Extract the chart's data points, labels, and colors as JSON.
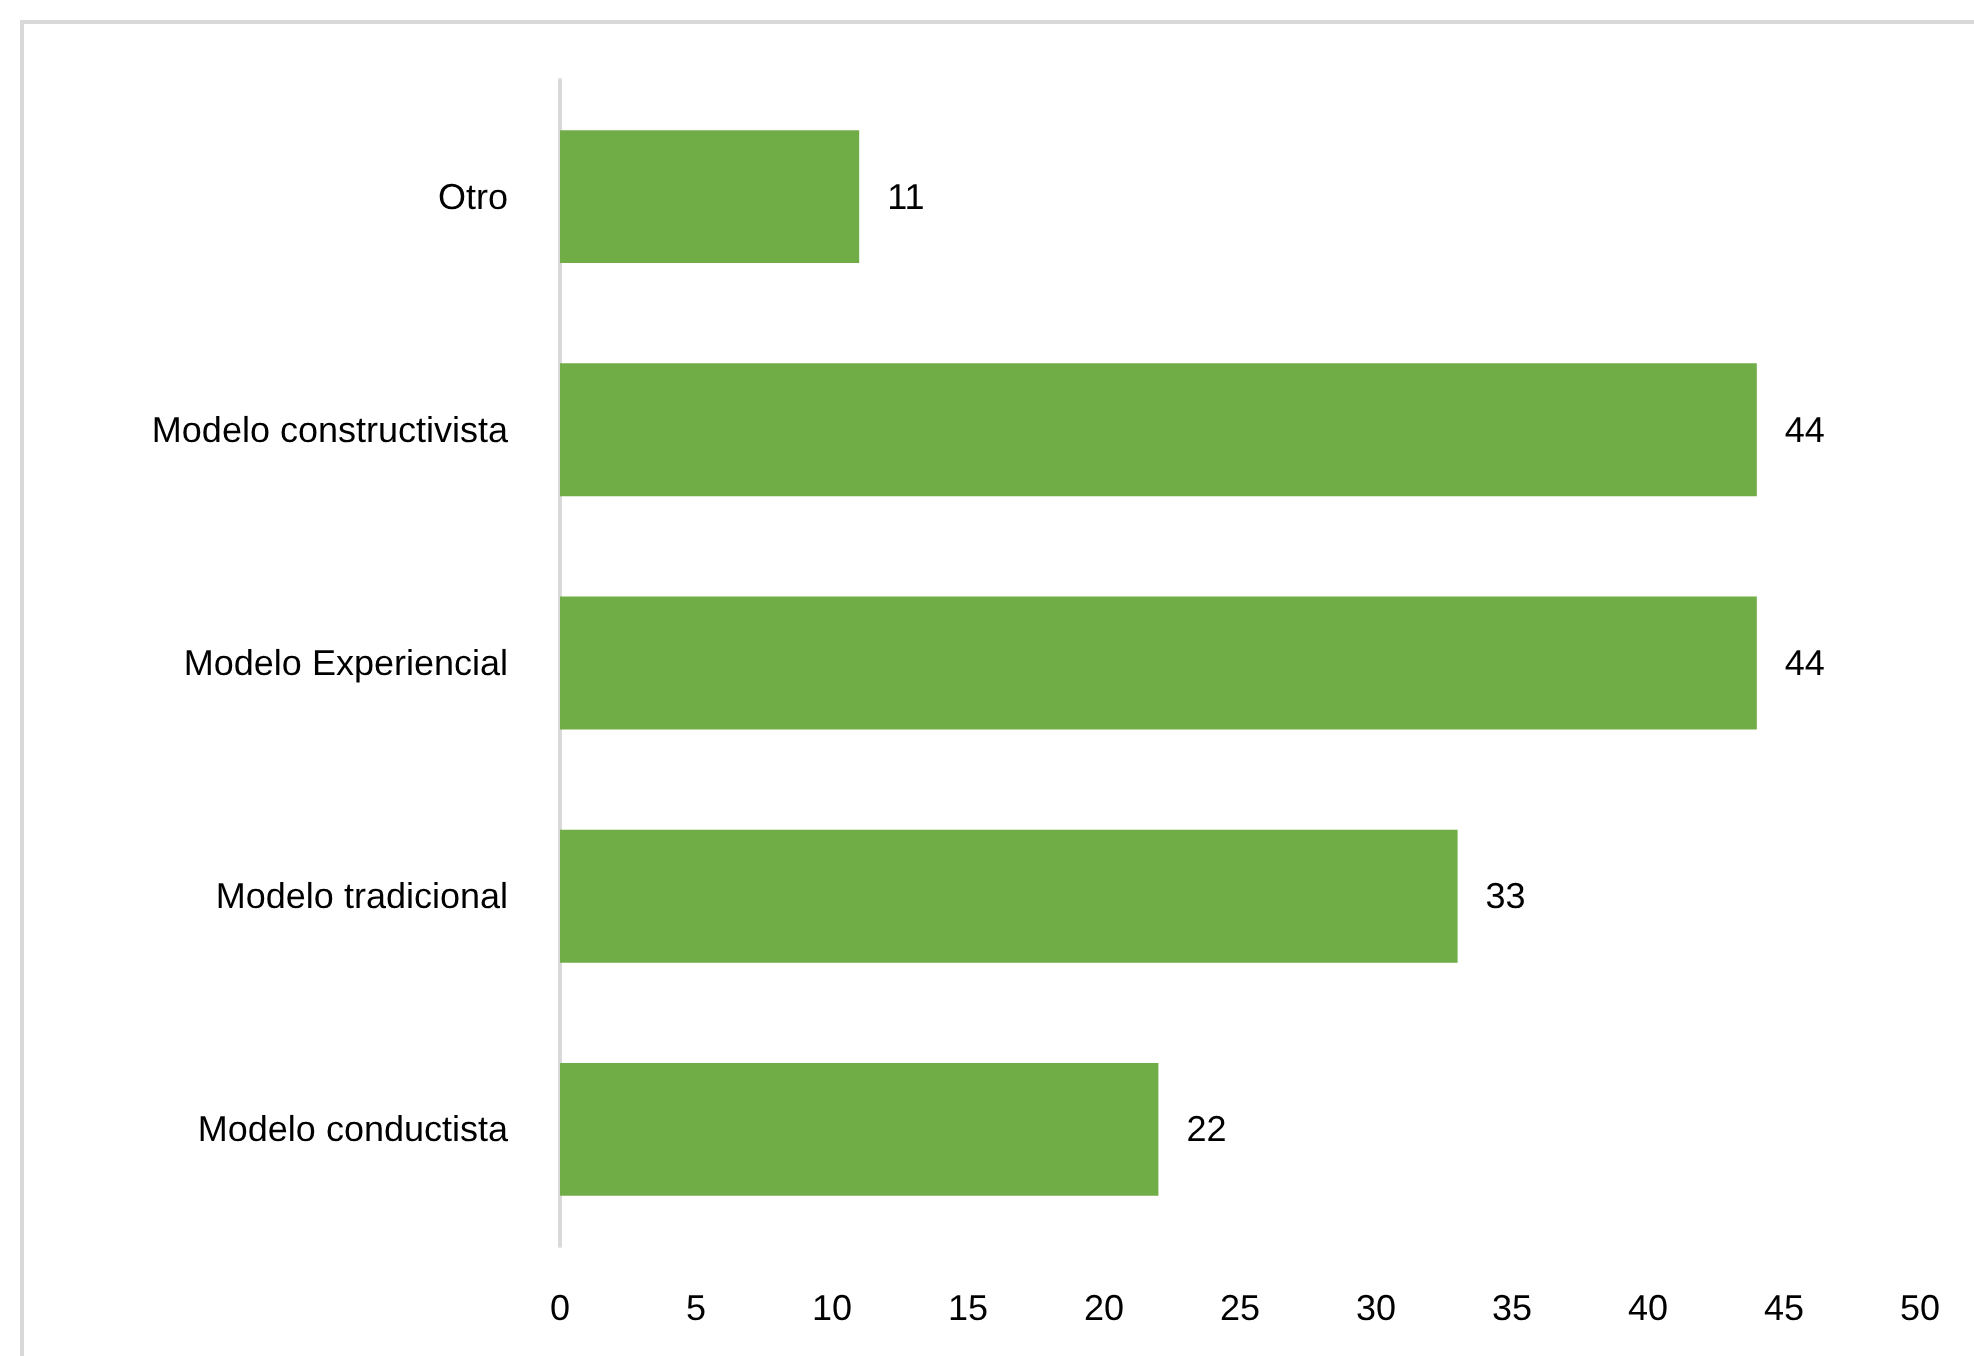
{
  "chart_data": {
    "type": "bar",
    "orientation": "horizontal",
    "categories": [
      "Otro",
      "Modelo constructivista",
      "Modelo Experiencial",
      "Modelo tradicional",
      "Modelo conductista"
    ],
    "values": [
      11,
      44,
      44,
      33,
      22
    ],
    "color": "#70ad47",
    "xlim": [
      0,
      50
    ],
    "xticks": [
      0,
      5,
      10,
      15,
      20,
      25,
      30,
      35,
      40,
      45,
      50
    ],
    "data_labels": true
  }
}
